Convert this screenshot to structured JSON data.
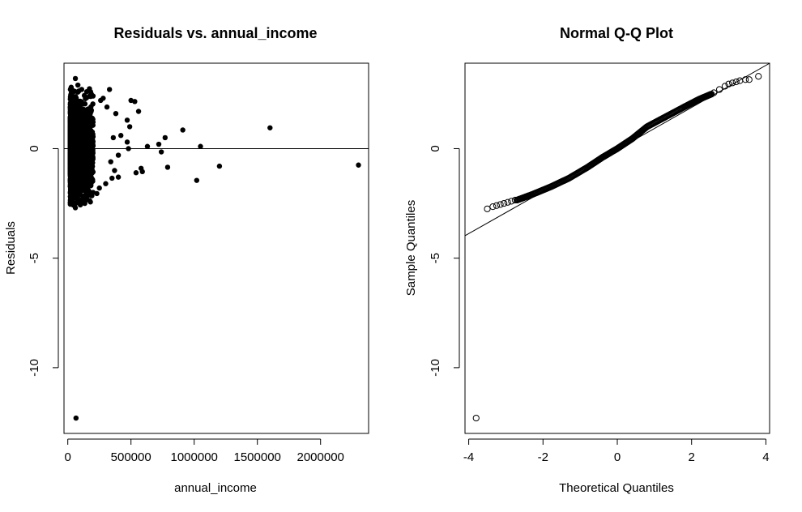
{
  "chart_data": [
    {
      "type": "scatter",
      "title": "Residuals vs. annual_income",
      "xlabel": "annual_income",
      "ylabel": "Residuals",
      "xlim": [
        -30000,
        2380000
      ],
      "ylim": [
        -13.0,
        3.9
      ],
      "x_ticks": [
        0,
        500000,
        1000000,
        1500000,
        2000000
      ],
      "x_tick_labels": [
        "0",
        "500000",
        "1000000",
        "1500000",
        "2000000"
      ],
      "y_ticks": [
        0,
        -5,
        -10
      ],
      "y_tick_labels": [
        "0",
        "-5",
        "-10"
      ],
      "reference_line_y": 0,
      "marker": "filled-circle",
      "points": [
        {
          "x": 60000,
          "y": 3.2
        },
        {
          "x": 80000,
          "y": 2.9
        },
        {
          "x": 110000,
          "y": 2.7
        },
        {
          "x": 150000,
          "y": 2.6
        },
        {
          "x": 200000,
          "y": 2.4
        },
        {
          "x": 260000,
          "y": 2.2
        },
        {
          "x": 330000,
          "y": 2.7
        },
        {
          "x": 500000,
          "y": 2.2
        },
        {
          "x": 530000,
          "y": 2.15
        },
        {
          "x": 560000,
          "y": 1.7
        },
        {
          "x": 470000,
          "y": 1.3
        },
        {
          "x": 490000,
          "y": 1.0
        },
        {
          "x": 470000,
          "y": 0.3
        },
        {
          "x": 480000,
          "y": 0.0
        },
        {
          "x": 630000,
          "y": 0.1
        },
        {
          "x": 720000,
          "y": 0.2
        },
        {
          "x": 740000,
          "y": -0.15
        },
        {
          "x": 770000,
          "y": 0.5
        },
        {
          "x": 910000,
          "y": 0.85
        },
        {
          "x": 1050000,
          "y": 0.1
        },
        {
          "x": 1600000,
          "y": 0.95
        },
        {
          "x": 2300000,
          "y": -0.75
        },
        {
          "x": 1200000,
          "y": -0.8
        },
        {
          "x": 1020000,
          "y": -1.45
        },
        {
          "x": 790000,
          "y": -0.85
        },
        {
          "x": 580000,
          "y": -0.9
        },
        {
          "x": 540000,
          "y": -1.1
        },
        {
          "x": 590000,
          "y": -1.05
        },
        {
          "x": 400000,
          "y": -1.3
        },
        {
          "x": 350000,
          "y": -1.35
        },
        {
          "x": 300000,
          "y": -1.6
        },
        {
          "x": 250000,
          "y": -1.8
        },
        {
          "x": 200000,
          "y": -2.0
        },
        {
          "x": 150000,
          "y": -2.2
        },
        {
          "x": 100000,
          "y": -2.4
        },
        {
          "x": 60000,
          "y": -2.7
        },
        {
          "x": 50000,
          "y": -2.5
        },
        {
          "x": 65000,
          "y": -12.3
        },
        {
          "x": 360000,
          "y": 0.5
        },
        {
          "x": 400000,
          "y": -0.3
        },
        {
          "x": 420000,
          "y": 0.6
        },
        {
          "x": 380000,
          "y": 1.6
        },
        {
          "x": 310000,
          "y": 1.9
        },
        {
          "x": 280000,
          "y": 2.3
        },
        {
          "x": 340000,
          "y": -0.6
        },
        {
          "x": 370000,
          "y": -1.0
        },
        {
          "x": 230000,
          "y": -2.05
        },
        {
          "x": 180000,
          "y": 2.6
        },
        {
          "x": 130000,
          "y": -2.3
        }
      ]
    },
    {
      "type": "scatter",
      "title": "Normal Q-Q Plot",
      "xlabel": "Theoretical Quantiles",
      "ylabel": "Sample Quantiles",
      "xlim": [
        -4.1,
        4.1
      ],
      "ylim": [
        -13.0,
        3.9
      ],
      "x_ticks": [
        -4,
        -2,
        0,
        2,
        4
      ],
      "x_tick_labels": [
        "-4",
        "-2",
        "0",
        "2",
        "4"
      ],
      "y_ticks": [
        0,
        -5,
        -10
      ],
      "y_tick_labels": [
        "0",
        "-5",
        "-10"
      ],
      "reference_line": {
        "intercept": -0.04,
        "slope": 0.96
      },
      "marker": "open-circle",
      "points": [
        {
          "x": -3.8,
          "y": -12.3
        },
        {
          "x": -3.5,
          "y": -2.75
        },
        {
          "x": -3.35,
          "y": -2.65
        },
        {
          "x": -3.25,
          "y": -2.6
        },
        {
          "x": -3.15,
          "y": -2.55
        },
        {
          "x": -3.05,
          "y": -2.5
        },
        {
          "x": -2.95,
          "y": -2.45
        },
        {
          "x": -2.85,
          "y": -2.4
        },
        {
          "x": -2.75,
          "y": -2.35
        },
        {
          "x": 2.6,
          "y": 2.55
        },
        {
          "x": 2.75,
          "y": 2.7
        },
        {
          "x": 2.9,
          "y": 2.85
        },
        {
          "x": 3.0,
          "y": 2.95
        },
        {
          "x": 3.1,
          "y": 3.0
        },
        {
          "x": 3.2,
          "y": 3.05
        },
        {
          "x": 3.3,
          "y": 3.1
        },
        {
          "x": 3.45,
          "y": 3.15
        },
        {
          "x": 3.55,
          "y": 3.15
        },
        {
          "x": 3.8,
          "y": 3.3
        }
      ],
      "curve_knots": [
        {
          "x": -2.7,
          "y": -2.35
        },
        {
          "x": -2.3,
          "y": -2.1
        },
        {
          "x": -1.8,
          "y": -1.75
        },
        {
          "x": -1.3,
          "y": -1.35
        },
        {
          "x": -0.8,
          "y": -0.85
        },
        {
          "x": -0.4,
          "y": -0.4
        },
        {
          "x": 0.0,
          "y": 0.0
        },
        {
          "x": 0.4,
          "y": 0.45
        },
        {
          "x": 0.8,
          "y": 1.0
        },
        {
          "x": 1.3,
          "y": 1.45
        },
        {
          "x": 1.8,
          "y": 1.9
        },
        {
          "x": 2.2,
          "y": 2.25
        },
        {
          "x": 2.55,
          "y": 2.5
        }
      ]
    }
  ]
}
